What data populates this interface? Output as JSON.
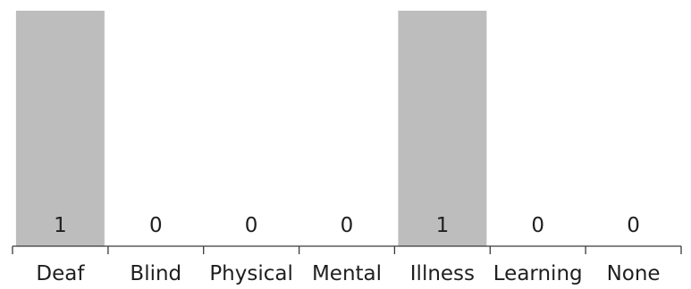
{
  "chart_data": {
    "type": "bar",
    "categories": [
      "Deaf",
      "Blind",
      "Physical",
      "Mental",
      "Illness",
      "Learning",
      "None"
    ],
    "values": [
      1,
      0,
      0,
      0,
      1,
      0,
      0
    ],
    "data_labels": [
      "1",
      "0",
      "0",
      "0",
      "1",
      "0",
      "0"
    ],
    "ylim": [
      0,
      1
    ],
    "grid": false,
    "bar_color": "#bdbdbd",
    "axis_color": "#3a3a3a",
    "text_color": "#1f1f1f"
  }
}
